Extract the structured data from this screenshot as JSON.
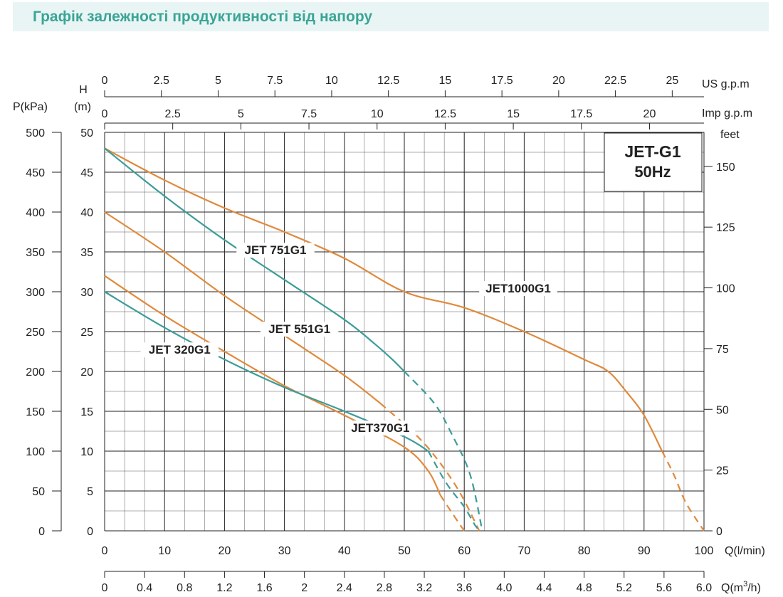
{
  "header": {
    "title": "Графік залежності продуктивності від напору"
  },
  "colors": {
    "orange": "#e08a3c",
    "teal": "#3c9c98",
    "header_text": "#3aa596",
    "header_bg": "#e9f5f4",
    "grid": "#222222"
  },
  "chart_data": {
    "type": "line",
    "legend_box": {
      "line1": "JET-G1",
      "line2": "50Hz"
    },
    "axes": {
      "x_main": {
        "label": "Q(l/min)",
        "range": [
          0,
          100
        ],
        "ticks": [
          "0",
          "10",
          "20",
          "30",
          "40",
          "50",
          "60",
          "70",
          "80",
          "90",
          "100"
        ]
      },
      "x_m3h": {
        "label_prefix": "Q(m",
        "label_sup": "3",
        "label_suffix": "/h)",
        "range": [
          0,
          6.0
        ],
        "ticks": [
          "0",
          "0.4",
          "0.8",
          "1.2",
          "1.6",
          "2",
          "2.4",
          "2.8",
          "3.2",
          "3.6",
          "4.0",
          "4.4",
          "4.8",
          "5.2",
          "5.6",
          "6.0"
        ]
      },
      "x_us": {
        "label": "US  g.p.m",
        "range": [
          0,
          26.4
        ],
        "ticks": [
          0,
          2.5,
          5,
          7.5,
          10,
          12.5,
          15,
          17.5,
          20,
          22.5,
          25
        ],
        "tick_labels": [
          "0",
          "2.5",
          "5",
          "7.5",
          "10",
          "12.5",
          "15",
          "17.5",
          "20",
          "22.5",
          "25"
        ]
      },
      "x_imp": {
        "label": "Imp  g.p.m",
        "range": [
          0,
          22
        ],
        "ticks": [
          0,
          2.5,
          5,
          7.5,
          10,
          12.5,
          15,
          17.5,
          20
        ],
        "tick_labels": [
          "0",
          "2.5",
          "5",
          "7.5",
          "10",
          "12.5",
          "15",
          "17.5",
          "20"
        ]
      },
      "y_m": {
        "label_top": "H",
        "label": "(m)",
        "range": [
          0,
          50
        ],
        "ticks": [
          "0",
          "5",
          "10",
          "15",
          "20",
          "25",
          "30",
          "35",
          "40",
          "45",
          "50"
        ]
      },
      "y_kpa": {
        "label": "P(kPa)",
        "range": [
          0,
          500
        ],
        "ticks": [
          "0",
          "50",
          "100",
          "150",
          "200",
          "250",
          "300",
          "350",
          "400",
          "450",
          "500"
        ]
      },
      "y_feet": {
        "label": "feet",
        "range": [
          0,
          164
        ],
        "ticks": [
          0,
          25,
          50,
          75,
          100,
          125,
          150
        ],
        "tick_labels": [
          "0",
          "25",
          "50",
          "75",
          "100",
          "125",
          "150"
        ]
      }
    },
    "series": [
      {
        "name": "JET1000G1",
        "color": "orange",
        "points": [
          [
            0,
            48
          ],
          [
            10,
            44
          ],
          [
            20,
            40.5
          ],
          [
            30,
            37.5
          ],
          [
            40,
            34.2
          ],
          [
            50,
            30
          ],
          [
            60,
            28
          ],
          [
            70,
            25
          ],
          [
            80,
            21.5
          ],
          [
            84,
            20
          ],
          [
            87,
            17.5
          ],
          [
            90,
            14.5
          ],
          [
            93,
            10
          ]
        ],
        "dashed_points": [
          [
            93,
            10
          ],
          [
            95,
            7
          ],
          [
            97,
            3.5
          ],
          [
            100,
            0
          ]
        ],
        "label_pos": [
          69,
          30
        ]
      },
      {
        "name": "JET 751G1",
        "color": "teal",
        "points": [
          [
            0,
            48
          ],
          [
            10,
            42
          ],
          [
            20,
            36.5
          ],
          [
            30,
            31.5
          ],
          [
            40,
            26.5
          ],
          [
            45,
            23.5
          ],
          [
            48,
            21.5
          ],
          [
            50,
            20
          ]
        ],
        "dashed_points": [
          [
            50,
            20
          ],
          [
            55,
            16
          ],
          [
            58,
            12
          ],
          [
            61,
            7
          ],
          [
            63,
            0
          ]
        ],
        "label_pos": [
          28.5,
          34.8
        ]
      },
      {
        "name": "JET 551G1",
        "color": "orange",
        "points": [
          [
            0,
            40
          ],
          [
            10,
            35
          ],
          [
            20,
            29.5
          ],
          [
            30,
            24.5
          ],
          [
            40,
            19.5
          ],
          [
            46,
            16
          ]
        ],
        "dashed_points": [
          [
            46,
            16
          ],
          [
            52,
            12
          ],
          [
            56,
            8.5
          ],
          [
            59.5,
            4.5
          ],
          [
            62.5,
            0
          ]
        ],
        "label_pos": [
          32.5,
          24.9
        ]
      },
      {
        "name": "JET 320G1",
        "color": "orange",
        "points": [
          [
            0,
            32
          ],
          [
            10,
            27
          ],
          [
            20,
            22.5
          ],
          [
            30,
            18.2
          ],
          [
            40,
            14.5
          ],
          [
            50,
            10.5
          ],
          [
            54,
            7.5
          ],
          [
            56,
            4.5
          ]
        ],
        "dashed_points": [
          [
            56,
            4.5
          ],
          [
            58,
            2.2
          ],
          [
            60,
            0
          ]
        ],
        "label_pos": [
          12.5,
          22.3
        ]
      },
      {
        "name": "JET370G1",
        "color": "teal",
        "points": [
          [
            0,
            30
          ],
          [
            10,
            25.5
          ],
          [
            20,
            21.5
          ],
          [
            30,
            18
          ],
          [
            40,
            15
          ],
          [
            50,
            11.8
          ],
          [
            54,
            10
          ]
        ],
        "dashed_points": [
          [
            54,
            10
          ],
          [
            57,
            6
          ],
          [
            60,
            3
          ],
          [
            62,
            0.5
          ],
          [
            63,
            0
          ]
        ],
        "label_pos": [
          46,
          12.5
        ]
      }
    ]
  }
}
